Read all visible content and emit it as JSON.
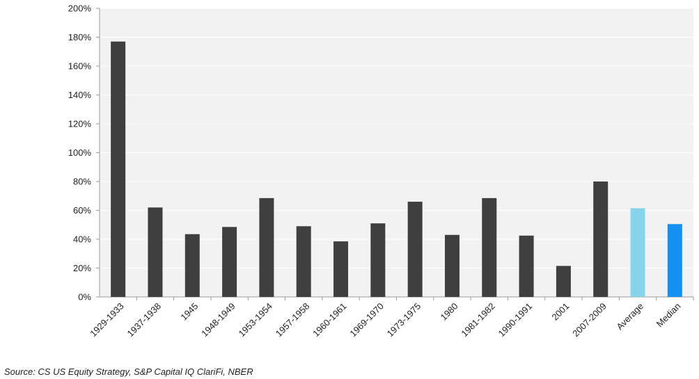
{
  "chart_data": {
    "type": "bar",
    "title": "",
    "xlabel": "",
    "ylabel": "",
    "categories": [
      "1929-1933",
      "1937-1938",
      "1945",
      "1948-1949",
      "1953-1954",
      "1957-1958",
      "1960-1961",
      "1969-1970",
      "1973-1975",
      "1980",
      "1981-1982",
      "1990-1991",
      "2001",
      "2007-2009",
      "Average",
      "Median"
    ],
    "values": [
      177,
      62,
      43.5,
      48.5,
      68.5,
      49,
      38.5,
      51,
      66,
      43,
      68.5,
      42.5,
      21.5,
      80,
      61.5,
      50.5
    ],
    "value_unit": "percent",
    "ylim": [
      0,
      200
    ],
    "yticks": [
      0,
      20,
      40,
      60,
      80,
      100,
      120,
      140,
      160,
      180,
      200
    ],
    "ytick_labels": [
      "0%",
      "20%",
      "40%",
      "60%",
      "80%",
      "100%",
      "120%",
      "140%",
      "160%",
      "180%",
      "200%"
    ],
    "grid": true,
    "bar_colors": [
      "#3f3f3f",
      "#3f3f3f",
      "#3f3f3f",
      "#3f3f3f",
      "#3f3f3f",
      "#3f3f3f",
      "#3f3f3f",
      "#3f3f3f",
      "#3f3f3f",
      "#3f3f3f",
      "#3f3f3f",
      "#3f3f3f",
      "#3f3f3f",
      "#3f3f3f",
      "#87d3ec",
      "#1491f2"
    ],
    "plot_background": "#f2f2f2",
    "gridline_color": "#ffffff"
  },
  "footer": {
    "source": "Source: CS US Equity Strategy, S&P Capital IQ ClariFi, NBER"
  }
}
